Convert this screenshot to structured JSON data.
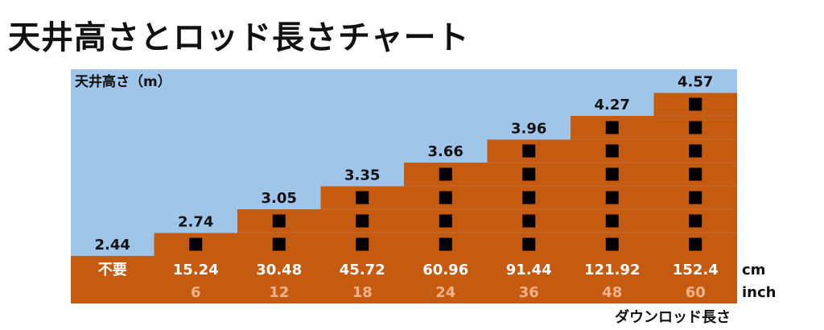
{
  "title": "天井高さとロッド長さチャート",
  "colors": {
    "sky": "#9fc5e8",
    "step": "#c55a11",
    "grid": "#c26a2e",
    "text": "#111111",
    "inch_text": "#f2b38a",
    "cm_text": "#ffffff"
  },
  "chart_data": {
    "type": "bar",
    "ylabel": "天井高さ（m）",
    "xlabel": "ダウンロッド長さ",
    "cm_unit": "cm",
    "inch_unit": "inch",
    "categories": [
      "不要",
      "15.24",
      "30.48",
      "45.72",
      "60.96",
      "91.44",
      "121.92",
      "152.4"
    ],
    "inches": [
      "",
      "6",
      "12",
      "18",
      "24",
      "36",
      "48",
      "60"
    ],
    "values": [
      2.44,
      2.74,
      3.05,
      3.35,
      3.66,
      3.96,
      4.27,
      4.57
    ],
    "value_labels": [
      "2.44",
      "2.74",
      "3.05",
      "3.35",
      "3.66",
      "3.96",
      "4.27",
      "4.57"
    ],
    "markers": [
      0,
      1,
      2,
      3,
      4,
      5,
      6,
      7
    ]
  }
}
